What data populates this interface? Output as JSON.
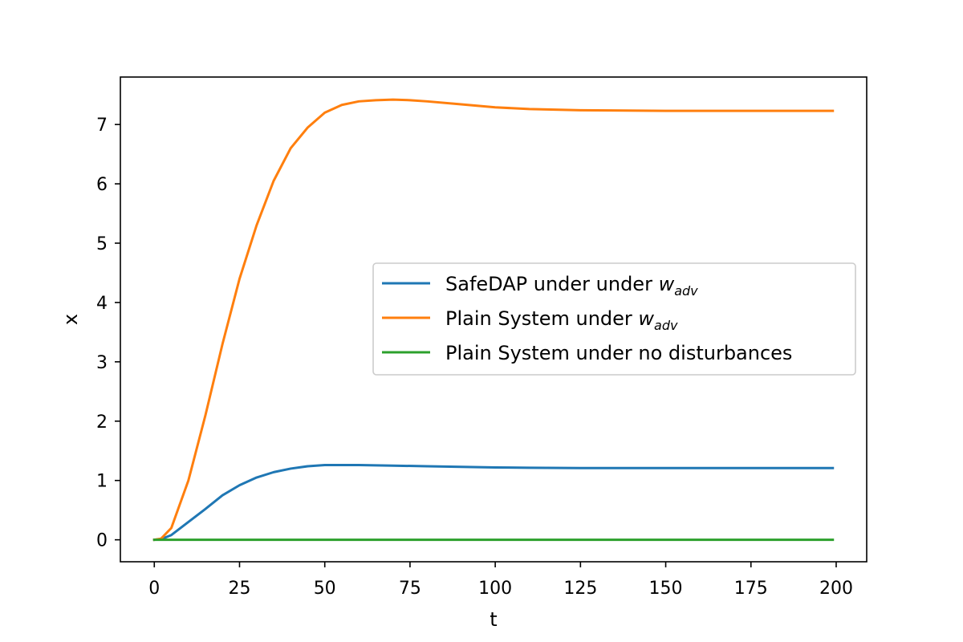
{
  "chart_data": {
    "type": "line",
    "title": "",
    "xlabel": "t",
    "ylabel": "x",
    "xlim": [
      -9.95,
      208.95
    ],
    "ylim": [
      -0.37,
      7.8
    ],
    "xticks": [
      0,
      25,
      50,
      75,
      100,
      125,
      150,
      175,
      200
    ],
    "yticks": [
      0,
      1,
      2,
      3,
      4,
      5,
      6,
      7
    ],
    "grid": false,
    "legend_position": "center-right",
    "series": [
      {
        "name_main": "SafeDAP under under ",
        "name_var": "w",
        "name_sub": "adv",
        "color": "#1f77b4",
        "x": [
          0,
          2,
          5,
          10,
          15,
          20,
          25,
          30,
          35,
          40,
          45,
          50,
          55,
          60,
          70,
          80,
          90,
          100,
          110,
          125,
          150,
          175,
          199
        ],
        "y": [
          0,
          0.01,
          0.08,
          0.3,
          0.52,
          0.75,
          0.92,
          1.05,
          1.14,
          1.2,
          1.24,
          1.26,
          1.26,
          1.26,
          1.25,
          1.24,
          1.23,
          1.22,
          1.215,
          1.21,
          1.21,
          1.21,
          1.21
        ]
      },
      {
        "name_main": "Plain System under ",
        "name_var": "w",
        "name_sub": "adv",
        "color": "#ff7f0e",
        "x": [
          0,
          2,
          5,
          10,
          15,
          20,
          25,
          30,
          35,
          40,
          45,
          50,
          55,
          60,
          65,
          70,
          75,
          80,
          90,
          100,
          110,
          125,
          150,
          175,
          199
        ],
        "y": [
          0,
          0.02,
          0.2,
          1.0,
          2.1,
          3.3,
          4.4,
          5.3,
          6.05,
          6.6,
          6.95,
          7.2,
          7.33,
          7.39,
          7.41,
          7.42,
          7.41,
          7.39,
          7.34,
          7.29,
          7.26,
          7.24,
          7.23,
          7.23,
          7.23
        ]
      },
      {
        "name_main": "Plain System under no disturbances",
        "name_var": "",
        "name_sub": "",
        "color": "#2ca02c",
        "x": [
          0,
          50,
          100,
          150,
          199
        ],
        "y": [
          0,
          0,
          0,
          0,
          0
        ]
      }
    ]
  }
}
